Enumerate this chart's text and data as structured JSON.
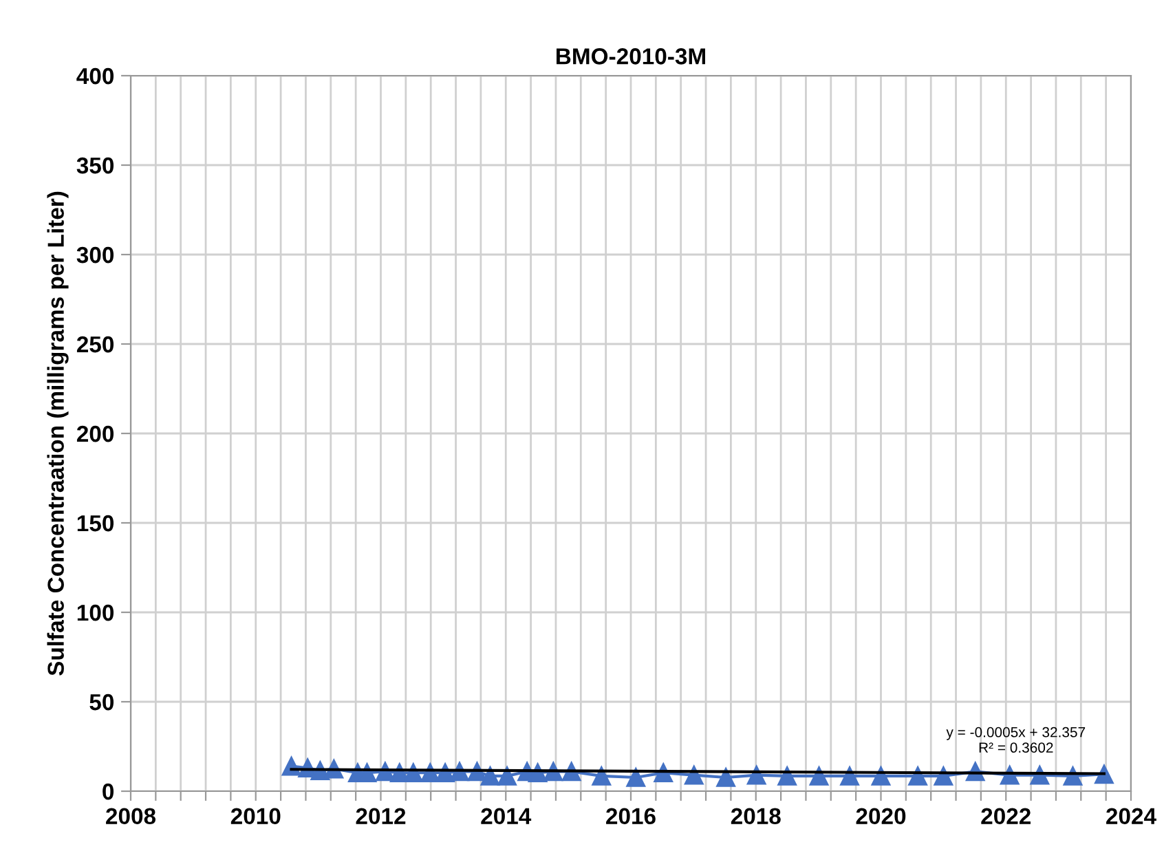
{
  "chart_data": {
    "type": "line",
    "title": "BMO-2010-3M",
    "ylabel": "Sulfate Concentraation (milligrams per Liter)",
    "xlim": [
      2008,
      2024
    ],
    "ylim": [
      0,
      400
    ],
    "xticks": [
      2008,
      {
        "value": 2008.4,
        "label": null
      },
      {
        "value": 2008.8,
        "label": null
      },
      {
        "value": 2009.2,
        "label": null
      },
      {
        "value": 2009.6,
        "label": null
      },
      2010,
      {
        "value": 2010.4,
        "label": null
      },
      {
        "value": 2010.8,
        "label": null
      },
      {
        "value": 2011.2,
        "label": null
      },
      {
        "value": 2011.6,
        "label": null
      },
      2012,
      {
        "value": 2012.4,
        "label": null
      },
      {
        "value": 2012.8,
        "label": null
      },
      {
        "value": 2013.2,
        "label": null
      },
      {
        "value": 2013.6,
        "label": null
      },
      2014,
      {
        "value": 2014.4,
        "label": null
      },
      {
        "value": 2014.8,
        "label": null
      },
      {
        "value": 2015.2,
        "label": null
      },
      {
        "value": 2015.6,
        "label": null
      },
      2016,
      {
        "value": 2016.4,
        "label": null
      },
      {
        "value": 2016.8,
        "label": null
      },
      {
        "value": 2017.2,
        "label": null
      },
      {
        "value": 2017.6,
        "label": null
      },
      2018,
      {
        "value": 2018.4,
        "label": null
      },
      {
        "value": 2018.8,
        "label": null
      },
      {
        "value": 2019.2,
        "label": null
      },
      {
        "value": 2019.6,
        "label": null
      },
      2020,
      {
        "value": 2020.4,
        "label": null
      },
      {
        "value": 2020.8,
        "label": null
      },
      {
        "value": 2021.2,
        "label": null
      },
      {
        "value": 2021.6,
        "label": null
      },
      2022,
      {
        "value": 2022.4,
        "label": null
      },
      {
        "value": 2022.8,
        "label": null
      },
      {
        "value": 2023.2,
        "label": null
      },
      {
        "value": 2023.6,
        "label": null
      },
      2024
    ],
    "yticks": [
      0,
      50,
      100,
      150,
      200,
      250,
      300,
      350,
      400
    ],
    "grid": true,
    "legend": false,
    "series": [
      {
        "marker": "triangle",
        "color": "#4472c4",
        "x": [
          2010.57,
          2010.83,
          2011.03,
          2011.25,
          2011.63,
          2011.78,
          2012.07,
          2012.3,
          2012.52,
          2012.79,
          2013.03,
          2013.26,
          2013.54,
          2013.75,
          2014.02,
          2014.34,
          2014.51,
          2014.76,
          2015.05,
          2015.53,
          2016.08,
          2016.52,
          2017.01,
          2017.52,
          2018.01,
          2018.5,
          2019.01,
          2019.5,
          2020.0,
          2020.59,
          2021.0,
          2021.51,
          2022.06,
          2022.54,
          2023.07,
          2023.57
        ],
        "values": [
          14,
          13,
          11.5,
          12.5,
          10.3,
          10.3,
          11,
          10.3,
          10.3,
          10.3,
          10.3,
          11,
          11,
          8.5,
          8.5,
          11,
          10.3,
          11,
          11,
          8.5,
          7.7,
          10.3,
          9,
          7.7,
          9,
          8.5,
          8.5,
          8.5,
          8.5,
          8.5,
          8.5,
          11,
          9,
          9,
          8.5,
          9.5
        ]
      },
      {
        "type": "line",
        "marker": "none",
        "color": "#000000",
        "x": [
          2010.57,
          2023.57
        ],
        "values": [
          12.2,
          9.8
        ]
      }
    ],
    "annotations": [
      "y = -0.0005x + 32.357\nR² = 0.3602"
    ]
  }
}
